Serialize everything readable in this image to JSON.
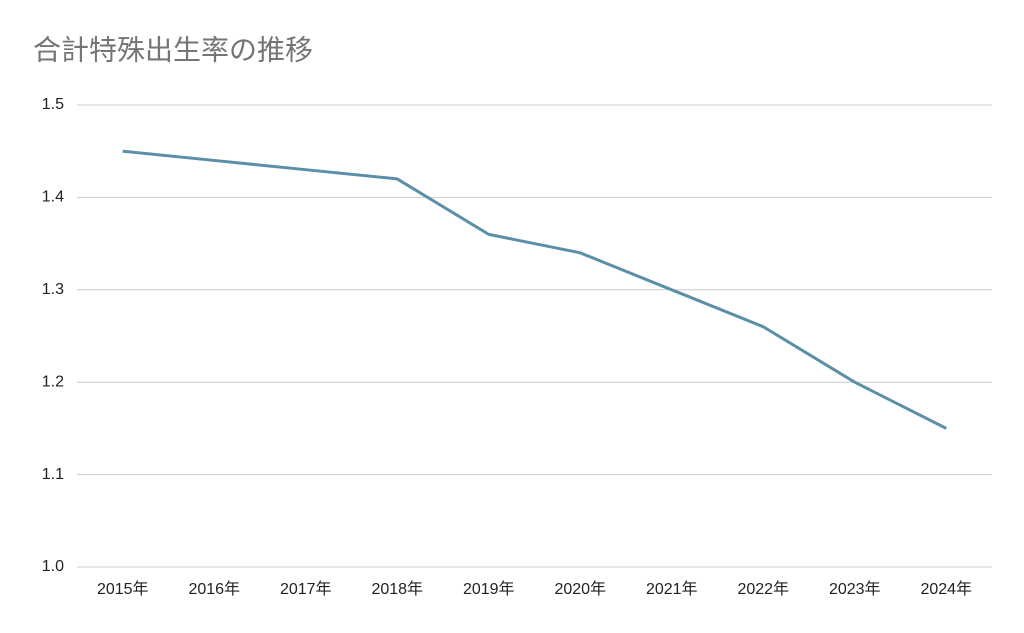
{
  "chart_data": {
    "type": "line",
    "title": "合計特殊出生率の推移",
    "categories": [
      "2015年",
      "2016年",
      "2017年",
      "2018年",
      "2019年",
      "2020年",
      "2021年",
      "2022年",
      "2023年",
      "2024年"
    ],
    "series": [
      {
        "name": "合計特殊出生率",
        "color": "#5b8fa8",
        "values": [
          1.45,
          1.44,
          1.43,
          1.42,
          1.36,
          1.34,
          1.3,
          1.26,
          1.2,
          1.15
        ]
      }
    ],
    "ylim": [
      1.0,
      1.5
    ],
    "yticks": [
      {
        "value": 1,
        "label": "1.0"
      },
      1.1,
      1.2,
      1.3,
      1.4,
      1.5
    ],
    "grid": true
  }
}
